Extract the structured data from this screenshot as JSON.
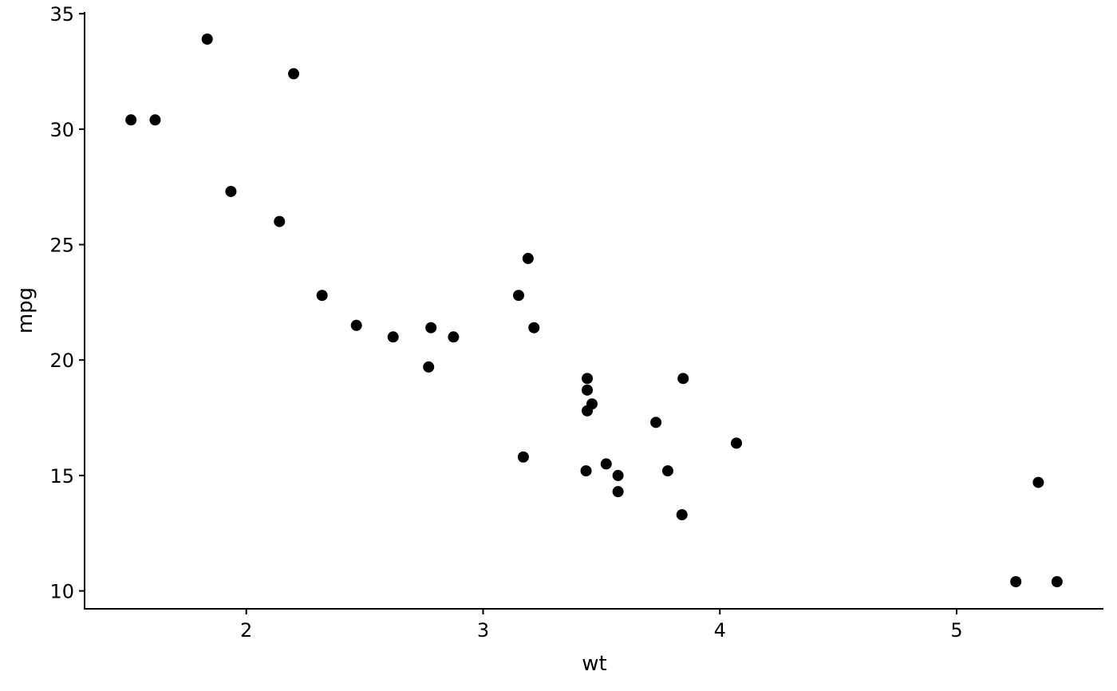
{
  "chart_data": {
    "type": "scatter",
    "title": "",
    "xlabel": "wt",
    "ylabel": "mpg",
    "xlim": [
      1.317,
      5.62
    ],
    "ylim": [
      9.225,
      35.075
    ],
    "xticks": [
      2,
      3,
      4,
      5
    ],
    "yticks": [
      10,
      15,
      20,
      25,
      30,
      35
    ],
    "xtick_labels": [
      "2",
      "3",
      "4",
      "5"
    ],
    "ytick_labels": [
      "10",
      "15",
      "20",
      "25",
      "30",
      "35"
    ],
    "grid": false,
    "point_color": "#000000",
    "points": [
      {
        "x": 2.62,
        "y": 21.0
      },
      {
        "x": 2.875,
        "y": 21.0
      },
      {
        "x": 2.32,
        "y": 22.8
      },
      {
        "x": 3.215,
        "y": 21.4
      },
      {
        "x": 3.44,
        "y": 18.7
      },
      {
        "x": 3.46,
        "y": 18.1
      },
      {
        "x": 3.57,
        "y": 14.3
      },
      {
        "x": 3.19,
        "y": 24.4
      },
      {
        "x": 3.15,
        "y": 22.8
      },
      {
        "x": 3.44,
        "y": 19.2
      },
      {
        "x": 3.44,
        "y": 17.8
      },
      {
        "x": 4.07,
        "y": 16.4
      },
      {
        "x": 3.73,
        "y": 17.3
      },
      {
        "x": 3.78,
        "y": 15.2
      },
      {
        "x": 5.25,
        "y": 10.4
      },
      {
        "x": 5.424,
        "y": 10.4
      },
      {
        "x": 5.345,
        "y": 14.7
      },
      {
        "x": 2.2,
        "y": 32.4
      },
      {
        "x": 1.615,
        "y": 30.4
      },
      {
        "x": 1.835,
        "y": 33.9
      },
      {
        "x": 2.465,
        "y": 21.5
      },
      {
        "x": 3.52,
        "y": 15.5
      },
      {
        "x": 3.435,
        "y": 15.2
      },
      {
        "x": 3.84,
        "y": 13.3
      },
      {
        "x": 3.845,
        "y": 19.2
      },
      {
        "x": 1.935,
        "y": 27.3
      },
      {
        "x": 2.14,
        "y": 26.0
      },
      {
        "x": 1.513,
        "y": 30.4
      },
      {
        "x": 3.17,
        "y": 15.8
      },
      {
        "x": 2.77,
        "y": 19.7
      },
      {
        "x": 3.57,
        "y": 15.0
      },
      {
        "x": 2.78,
        "y": 21.4
      }
    ]
  }
}
